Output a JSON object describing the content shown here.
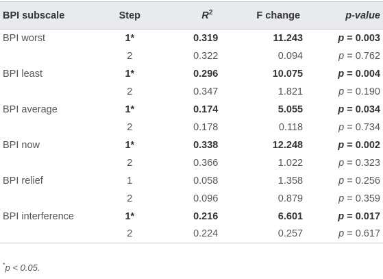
{
  "table": {
    "headers": {
      "subscale": "BPI subscale",
      "step": "Step",
      "r2_base": "R",
      "r2_sup": "2",
      "f_change": "F change",
      "p_value": "p-value"
    },
    "rows": [
      {
        "subscale": "BPI worst",
        "step": "1*",
        "r2": "0.319",
        "f": "11.243",
        "p_prefix": "p",
        "p_op": " = ",
        "p": "0.003",
        "sig": true
      },
      {
        "subscale": "",
        "step": "2",
        "r2": "0.322",
        "f": "0.094",
        "p_prefix": "p",
        "p_op": " = ",
        "p": "0.762",
        "sig": false
      },
      {
        "subscale": "BPI least",
        "step": "1*",
        "r2": "0.296",
        "f": "10.075",
        "p_prefix": "p",
        "p_op": " = ",
        "p": "0.004",
        "sig": true
      },
      {
        "subscale": "",
        "step": "2",
        "r2": "0.347",
        "f": "1.821",
        "p_prefix": "p",
        "p_op": " = ",
        "p": "0.190",
        "sig": false
      },
      {
        "subscale": "BPI average",
        "step": "1*",
        "r2": "0.174",
        "f": "5.055",
        "p_prefix": "p",
        "p_op": " = ",
        "p": "0.034",
        "sig": true
      },
      {
        "subscale": "",
        "step": "2",
        "r2": "0.178",
        "f": "0.118",
        "p_prefix": "p",
        "p_op": " = ",
        "p": "0.734",
        "sig": false
      },
      {
        "subscale": "BPI now",
        "step": "1*",
        "r2": "0.338",
        "f": "12.248",
        "p_prefix": "p",
        "p_op": " = ",
        "p": "0.002",
        "sig": true
      },
      {
        "subscale": "",
        "step": "2",
        "r2": "0.366",
        "f": "1.022",
        "p_prefix": "p",
        "p_op": " = ",
        "p": "0.323",
        "sig": false
      },
      {
        "subscale": "BPI relief",
        "step": "1",
        "r2": "0.058",
        "f": "1.358",
        "p_prefix": "p",
        "p_op": " = ",
        "p": "0.256",
        "sig": false
      },
      {
        "subscale": "",
        "step": "2",
        "r2": "0.096",
        "f": "0.879",
        "p_prefix": "p",
        "p_op": " = ",
        "p": "0.359",
        "sig": false
      },
      {
        "subscale": "BPI interference",
        "step": "1*",
        "r2": "0.216",
        "f": "6.601",
        "p_prefix": "p",
        "p_op": " = ",
        "p": "0.017",
        "sig": true
      },
      {
        "subscale": "",
        "step": "2",
        "r2": "0.224",
        "f": "0.257",
        "p_prefix": "p",
        "p_op": " = ",
        "p": "0.617",
        "sig": false
      }
    ]
  },
  "footnote": {
    "marker": "*",
    "text": "p < 0.05."
  },
  "colors": {
    "header_bg": "#e8eaee",
    "rule": "#bfc3c9",
    "text": "#555555",
    "bold_text": "#333333"
  }
}
